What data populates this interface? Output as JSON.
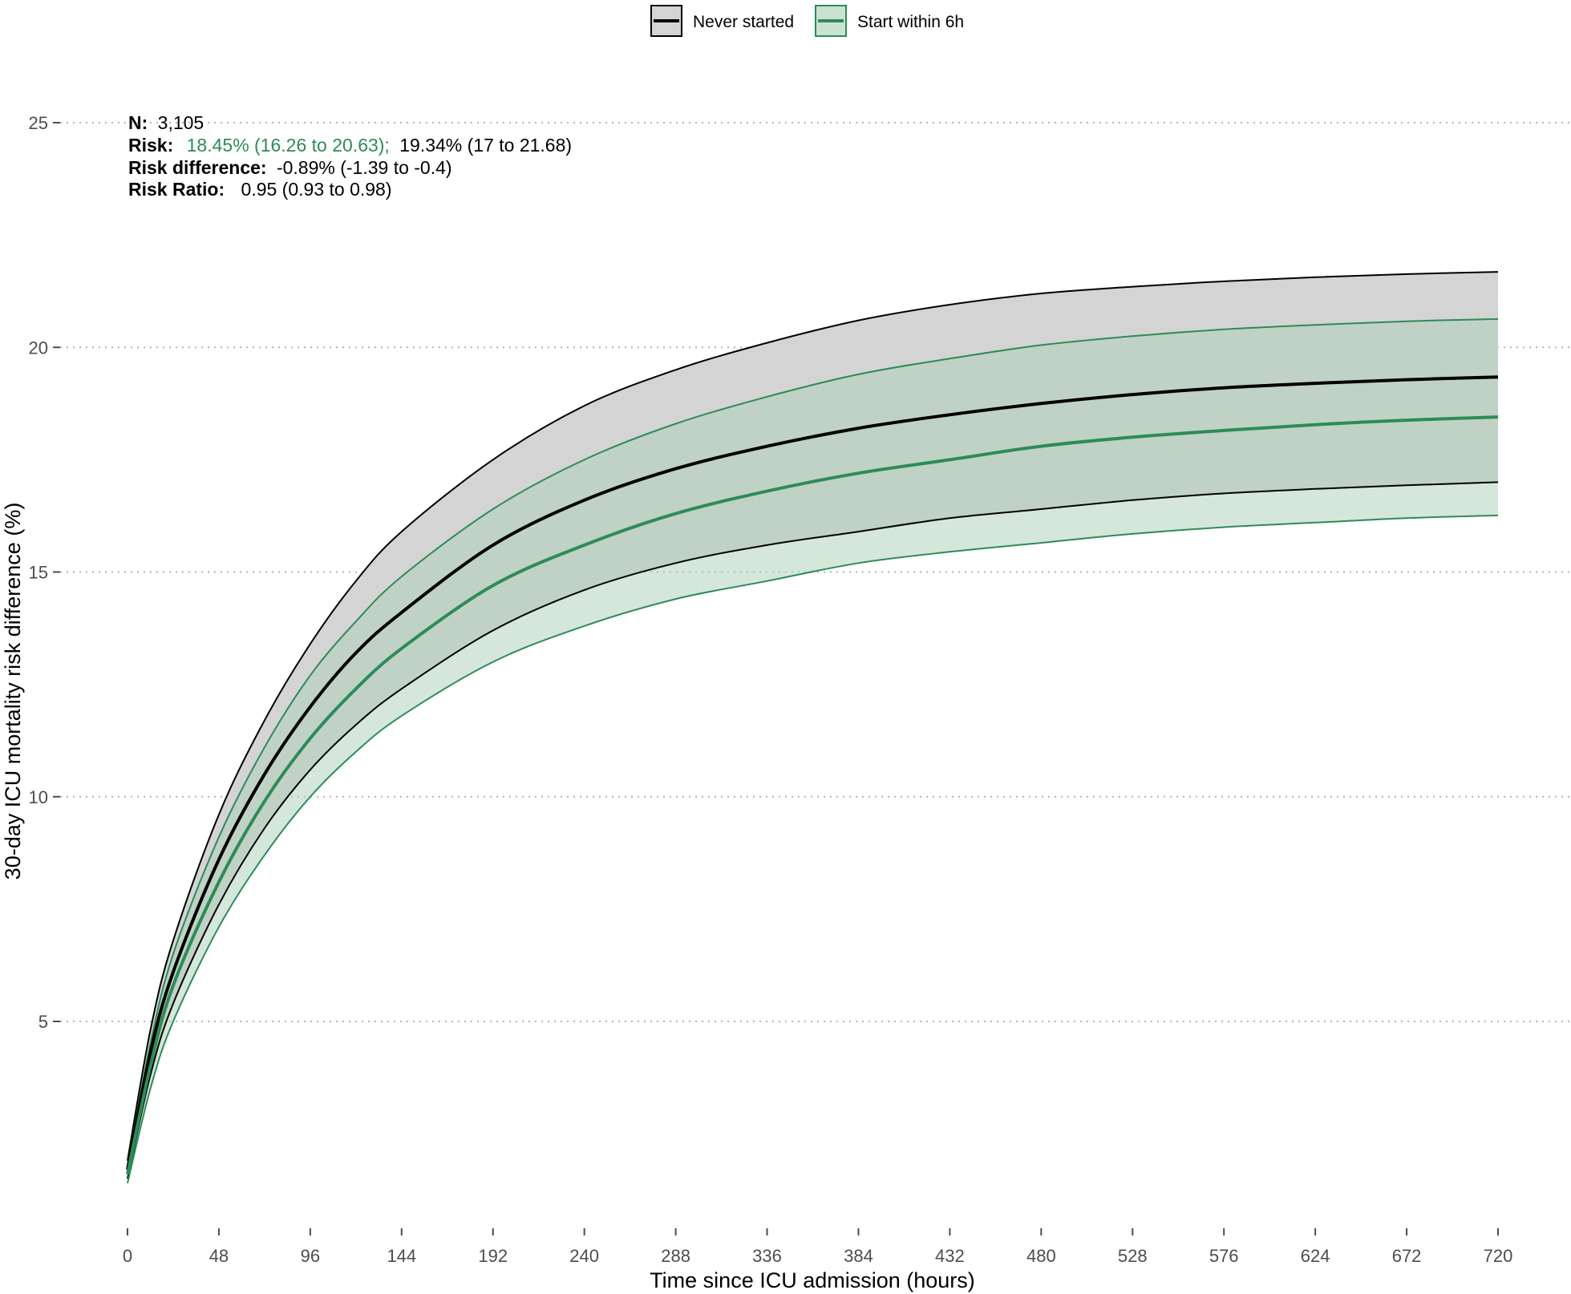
{
  "chart_data": {
    "type": "line",
    "xlabel": "Time since ICU admission (hours)",
    "ylabel": "30-day ICU mortality risk difference (%)",
    "xlim": [
      0,
      720
    ],
    "ylim": [
      0,
      25
    ],
    "x_ticks": [
      0,
      48,
      96,
      144,
      192,
      240,
      288,
      336,
      384,
      432,
      480,
      528,
      576,
      624,
      672,
      720
    ],
    "y_ticks": [
      5,
      10,
      15,
      20,
      25
    ],
    "grid": "horizontal-dotted",
    "legend_position": "top",
    "x": [
      0,
      12,
      24,
      48,
      72,
      96,
      120,
      144,
      192,
      240,
      288,
      336,
      384,
      432,
      480,
      528,
      576,
      624,
      672,
      720
    ],
    "series": [
      {
        "name": "Never started",
        "color": "#000000",
        "band_fill": "#d4d4d4",
        "values": [
          1.7,
          4.3,
          6.1,
          8.6,
          10.5,
          12.0,
          13.2,
          14.1,
          15.6,
          16.6,
          17.3,
          17.8,
          18.2,
          18.5,
          18.75,
          18.95,
          19.1,
          19.2,
          19.28,
          19.34
        ],
        "lower": [
          1.5,
          3.8,
          5.4,
          7.6,
          9.3,
          10.6,
          11.6,
          12.4,
          13.7,
          14.6,
          15.2,
          15.6,
          15.9,
          16.2,
          16.4,
          16.6,
          16.75,
          16.85,
          16.93,
          17.0
        ],
        "upper": [
          1.9,
          4.8,
          6.8,
          9.6,
          11.7,
          13.4,
          14.8,
          15.9,
          17.5,
          18.7,
          19.5,
          20.1,
          20.6,
          20.95,
          21.2,
          21.35,
          21.47,
          21.56,
          21.63,
          21.68
        ]
      },
      {
        "name": "Start within 6h",
        "color": "#2e8b57",
        "band_fill": "#a9cfb6",
        "values": [
          1.6,
          4.0,
          5.8,
          8.1,
          9.9,
          11.3,
          12.4,
          13.3,
          14.7,
          15.6,
          16.3,
          16.8,
          17.2,
          17.5,
          17.8,
          18.0,
          18.15,
          18.28,
          18.38,
          18.45
        ],
        "lower": [
          1.4,
          3.5,
          5.0,
          7.1,
          8.7,
          10.0,
          11.0,
          11.8,
          13.0,
          13.8,
          14.4,
          14.8,
          15.2,
          15.45,
          15.65,
          15.85,
          16.0,
          16.1,
          16.2,
          16.26
        ],
        "upper": [
          1.8,
          4.5,
          6.5,
          9.1,
          11.1,
          12.7,
          13.9,
          14.9,
          16.4,
          17.5,
          18.3,
          18.9,
          19.4,
          19.75,
          20.05,
          20.25,
          20.4,
          20.5,
          20.58,
          20.63
        ]
      }
    ],
    "annotation": {
      "n_label": "N:",
      "n_value": "3,105",
      "risk_label": "Risk:",
      "risk_treated": "18.45% (16.26 to 20.63);",
      "risk_untreated": "19.34% (17 to 21.68)",
      "rd_label": "Risk difference:",
      "rd_value": "-0.89% (-1.39 to -0.4)",
      "rr_label": "Risk Ratio:",
      "rr_value": "0.95 (0.93 to 0.98)"
    }
  }
}
